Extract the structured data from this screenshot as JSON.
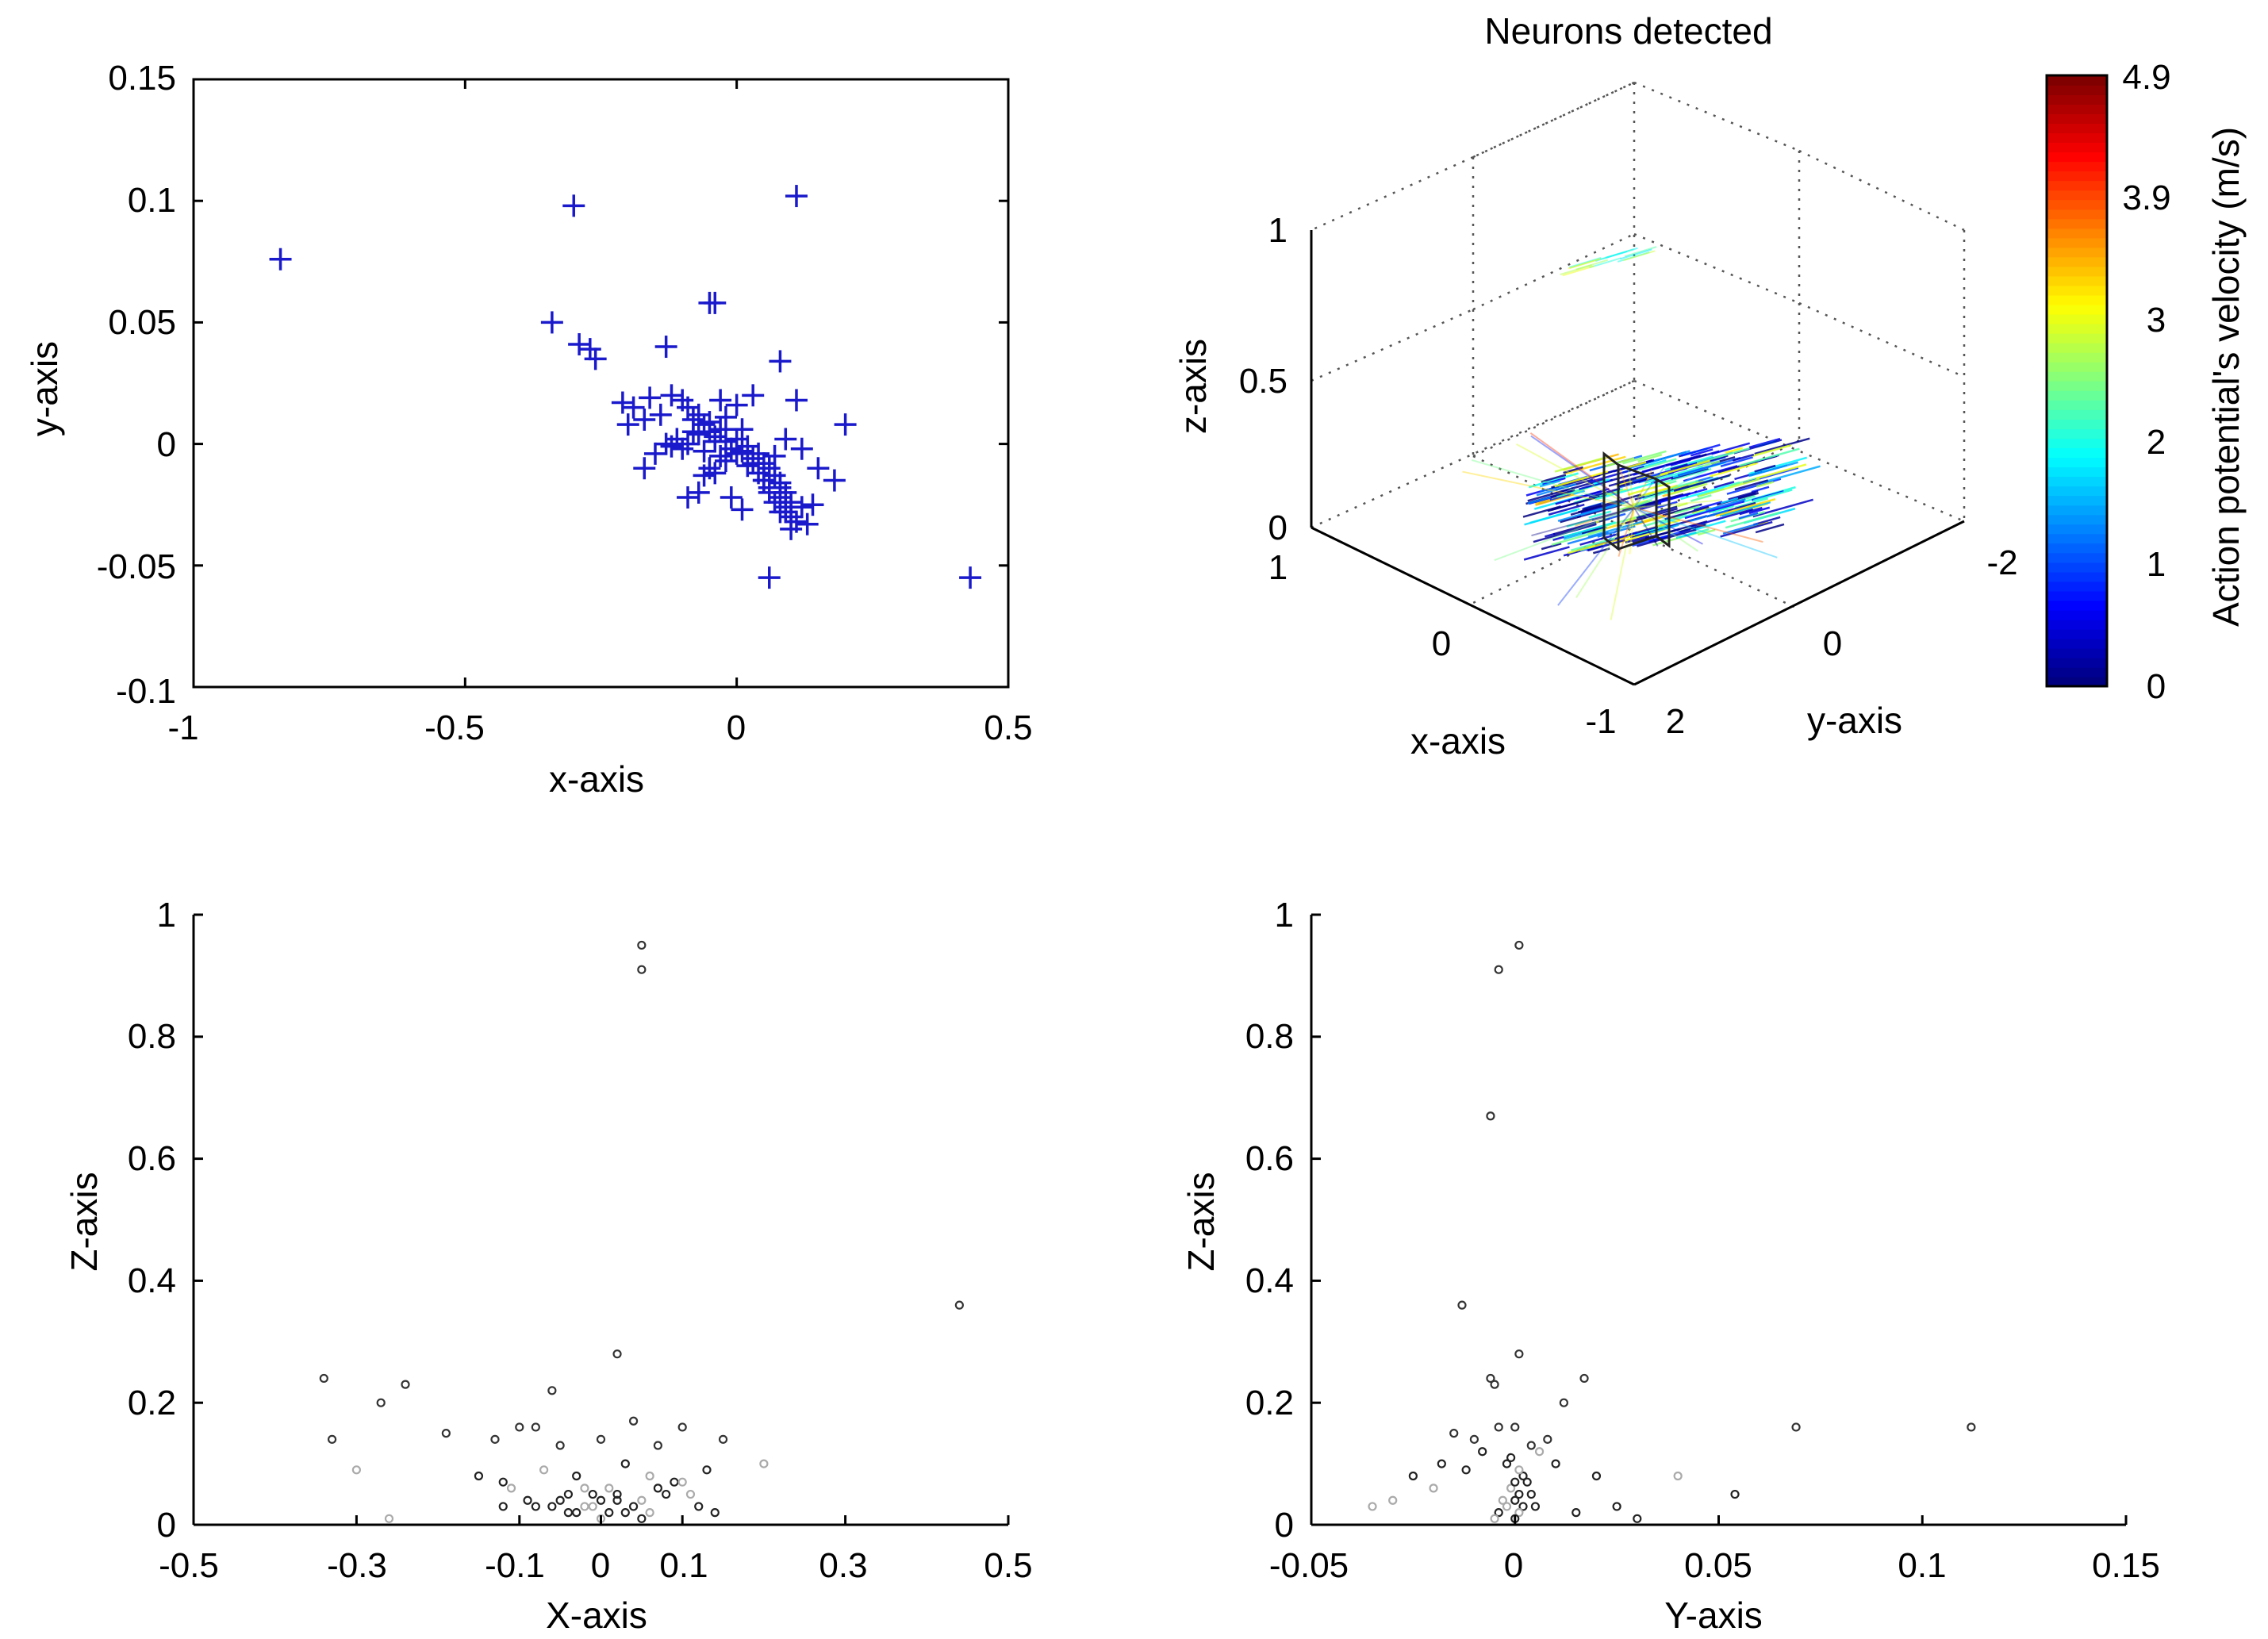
{
  "figure": {
    "background": "#ffffff",
    "axis_color": "#000000"
  },
  "chart_data": [
    {
      "type": "scatter",
      "id": "xy",
      "title": "",
      "xlabel": "x-axis",
      "ylabel": "y-axis",
      "xlim": [
        -1,
        0.5
      ],
      "ylim": [
        -0.1,
        0.15
      ],
      "xticks": [
        -1,
        -0.5,
        0,
        0.5
      ],
      "xtick_labels": [
        "-1",
        "-0.5",
        "0",
        "0.5"
      ],
      "yticks": [
        -0.1,
        -0.05,
        0,
        0.05,
        0.1,
        0.15
      ],
      "ytick_labels": [
        "-0.1",
        "-0.05",
        "0",
        "0.05",
        "0.1",
        "0.15"
      ],
      "marker": "+",
      "color": "#1a1acc",
      "x": [
        -0.84,
        -0.3,
        0.11,
        -0.34,
        -0.29,
        -0.27,
        -0.26,
        -0.13,
        -0.05,
        -0.04,
        0.08,
        -0.21,
        -0.16,
        -0.2,
        -0.19,
        -0.17,
        -0.14,
        -0.12,
        -0.1,
        -0.09,
        -0.08,
        -0.07,
        -0.06,
        -0.05,
        -0.04,
        -0.03,
        -0.02,
        -0.01,
        0.0,
        0.01,
        0.02,
        0.03,
        0.04,
        0.05,
        0.06,
        0.07,
        0.08,
        0.09,
        0.1,
        -0.11,
        -0.09,
        -0.07,
        -0.06,
        -0.04,
        -0.03,
        -0.02,
        0.0,
        0.02,
        0.04,
        0.06,
        0.08,
        0.09,
        0.1,
        -0.13,
        -0.1,
        -0.08,
        -0.05,
        -0.02,
        0.01,
        0.03,
        0.05,
        0.07,
        0.09,
        0.11,
        0.12,
        0.14,
        0.2,
        0.18,
        0.15,
        0.1,
        0.08,
        0.06,
        -0.06,
        -0.05,
        -0.03,
        -0.09,
        -0.07,
        -0.04,
        0.05,
        0.07,
        0.09,
        0.11,
        0.12,
        0.43,
        0.06,
        -0.15,
        -0.12,
        -0.17,
        0.0,
        0.03,
        0.13,
        0.1,
        0.08,
        -0.01,
        0.01
      ],
      "y": [
        0.076,
        0.098,
        0.102,
        0.05,
        0.041,
        0.039,
        0.035,
        0.04,
        0.058,
        0.058,
        0.034,
        0.017,
        0.019,
        0.008,
        0.015,
        0.01,
        0.012,
        0.02,
        0.018,
        0.015,
        0.01,
        0.012,
        0.008,
        0.005,
        0.003,
        0.006,
        0.001,
        -0.002,
        0.002,
        -0.003,
        -0.001,
        -0.006,
        -0.004,
        -0.008,
        -0.01,
        -0.013,
        -0.016,
        -0.02,
        -0.024,
        0.002,
        0.0,
        0.004,
        -0.003,
        0.001,
        -0.005,
        -0.007,
        -0.004,
        -0.009,
        -0.012,
        -0.018,
        -0.022,
        -0.026,
        -0.03,
        0.0,
        -0.002,
        0.005,
        0.009,
        0.011,
        0.006,
        -0.008,
        -0.015,
        -0.024,
        -0.028,
        -0.032,
        -0.026,
        -0.025,
        0.008,
        -0.015,
        -0.01,
        -0.035,
        -0.028,
        -0.02,
        -0.013,
        -0.01,
        0.018,
        -0.022,
        -0.02,
        -0.012,
        -0.015,
        -0.005,
        0.002,
        0.018,
        -0.002,
        -0.055,
        -0.055,
        -0.004,
        -0.001,
        -0.01,
        0.016,
        0.02,
        -0.033,
        -0.026,
        -0.018,
        -0.022,
        -0.027
      ]
    },
    {
      "type": "scatter3d",
      "id": "neurons3d",
      "title": "Neurons detected",
      "xlabel": "x-axis",
      "ylabel": "y-axis",
      "zlabel": "z-axis",
      "xlim": [
        -1,
        1
      ],
      "ylim": [
        -2,
        2
      ],
      "zlim": [
        0,
        1
      ],
      "xtick_labels": [
        "1",
        "0",
        "-1"
      ],
      "ytick_labels": [
        "2",
        "0",
        "-2"
      ],
      "ztick_labels": [
        "0",
        "0.5",
        "1"
      ],
      "colorbar": {
        "label": "Action potential's velocity (m/s)",
        "range": [
          0,
          4.9
        ],
        "tick_labels": [
          "0",
          "1",
          "2",
          "3",
          "3.9",
          "4.9"
        ],
        "colormap": "jet"
      }
    },
    {
      "type": "scatter",
      "id": "xz",
      "xlabel": "X-axis",
      "ylabel": "Z-axis",
      "xlim": [
        -0.5,
        0.5
      ],
      "ylim": [
        0,
        1
      ],
      "xtick_labels": [
        "-0.5",
        "-0.3",
        "-0.1",
        "0",
        "0.1",
        "0.3",
        "0.5"
      ],
      "ytick_labels": [
        "0",
        "0.2",
        "0.4",
        "0.6",
        "0.8",
        "1"
      ],
      "marker": "o",
      "x": [
        0.05,
        0.05,
        0.44,
        -0.34,
        -0.24,
        -0.27,
        -0.3,
        -0.19,
        -0.33,
        -0.26,
        -0.06,
        0.02,
        -0.1,
        -0.08,
        -0.13,
        -0.05,
        0.0,
        0.04,
        0.07,
        0.1,
        0.15,
        0.2,
        -0.15,
        -0.12,
        -0.07,
        -0.03,
        0.03,
        0.06,
        0.09,
        0.13,
        -0.02,
        -0.01,
        0.0,
        0.01,
        -0.04,
        0.02,
        0.05,
        -0.09,
        0.08,
        0.11,
        -0.06,
        0.04,
        -0.11,
        0.12,
        -0.03,
        0.06,
        -0.08,
        0.03,
        0.0,
        -0.05,
        0.07,
        0.1,
        -0.12,
        0.14,
        -0.02,
        0.02,
        0.01,
        -0.01,
        0.05,
        -0.04
      ],
      "y": [
        0.95,
        0.91,
        0.36,
        0.24,
        0.23,
        0.2,
        0.09,
        0.15,
        0.14,
        0.01,
        0.22,
        0.28,
        0.16,
        0.16,
        0.14,
        0.13,
        0.14,
        0.17,
        0.13,
        0.16,
        0.14,
        0.1,
        0.08,
        0.07,
        0.09,
        0.08,
        0.1,
        0.08,
        0.07,
        0.09,
        0.06,
        0.05,
        0.04,
        0.06,
        0.05,
        0.05,
        0.04,
        0.04,
        0.05,
        0.05,
        0.03,
        0.03,
        0.06,
        0.03,
        0.02,
        0.02,
        0.03,
        0.02,
        0.01,
        0.04,
        0.06,
        0.07,
        0.03,
        0.02,
        0.03,
        0.04,
        0.02,
        0.03,
        0.01,
        0.02
      ]
    },
    {
      "type": "scatter",
      "id": "yz",
      "xlabel": "Y-axis",
      "ylabel": "Z-axis",
      "xlim": [
        -0.05,
        0.15
      ],
      "ylim": [
        0,
        1
      ],
      "xtick_labels": [
        "-0.05",
        "0",
        "0.05",
        "0.1",
        "0.15"
      ],
      "ytick_labels": [
        "0",
        "0.2",
        "0.4",
        "0.6",
        "0.8",
        "1"
      ],
      "marker": "o",
      "x": [
        0.001,
        -0.004,
        -0.006,
        -0.013,
        0.001,
        -0.006,
        -0.005,
        0.017,
        0.012,
        -0.015,
        -0.01,
        -0.008,
        -0.004,
        0.0,
        0.004,
        0.008,
        -0.018,
        -0.012,
        0.006,
        0.01,
        0.02,
        -0.02,
        -0.002,
        0.002,
        -0.001,
        0.001,
        0.003,
        -0.003,
        0.0,
        0.002,
        -0.002,
        0.004,
        -0.004,
        0.001,
        0.0,
        0.005,
        -0.005,
        0.069,
        0.112,
        0.04,
        0.054,
        0.025,
        -0.03,
        -0.025,
        0.015,
        -0.035,
        0.03,
        0.0,
        0.001,
        -0.001
      ],
      "y": [
        0.95,
        0.91,
        0.67,
        0.36,
        0.28,
        0.24,
        0.23,
        0.24,
        0.2,
        0.15,
        0.14,
        0.12,
        0.16,
        0.16,
        0.13,
        0.14,
        0.1,
        0.09,
        0.12,
        0.1,
        0.08,
        0.06,
        0.1,
        0.08,
        0.06,
        0.05,
        0.07,
        0.04,
        0.04,
        0.03,
        0.03,
        0.05,
        0.02,
        0.02,
        0.01,
        0.03,
        0.01,
        0.16,
        0.16,
        0.08,
        0.05,
        0.03,
        0.04,
        0.08,
        0.02,
        0.03,
        0.01,
        0.07,
        0.09,
        0.11
      ]
    }
  ]
}
